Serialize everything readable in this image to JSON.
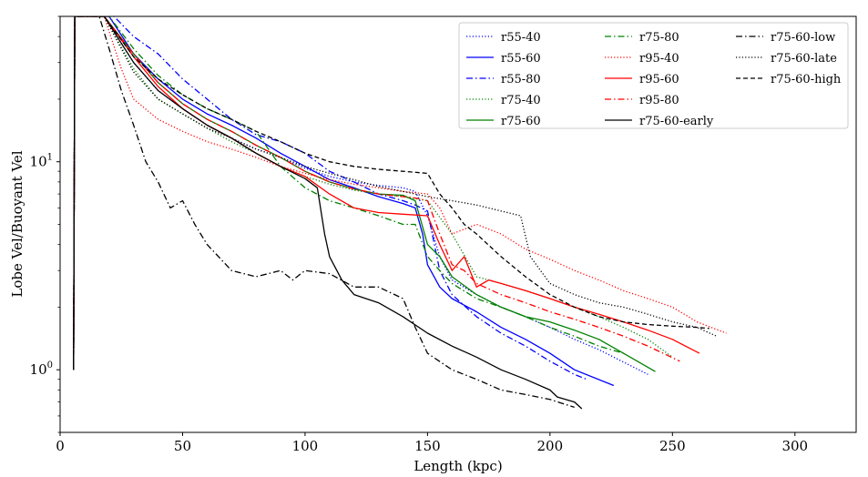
{
  "chart_data": {
    "type": "line",
    "title": "",
    "xlabel": "Length (kpc)",
    "ylabel": "Lobe Vel/Buoyant Vel",
    "xlim": [
      0,
      325
    ],
    "ylim": [
      0.5,
      50
    ],
    "yscale": "log",
    "grid": false,
    "legend_position": "top-right",
    "x_ticks": [
      0,
      50,
      100,
      150,
      200,
      250,
      300
    ],
    "x_tick_labels": [
      "0",
      "50",
      "100",
      "150",
      "200",
      "250",
      "300"
    ],
    "y_ticks": [
      1,
      10
    ],
    "y_tick_base": "10",
    "y_tick_exponents": [
      "0",
      "1"
    ],
    "series": [
      {
        "name": "r55-40",
        "color": "#0000ff",
        "dash": "dotted",
        "x": [
          5.5,
          6,
          18,
          30,
          40,
          50,
          60,
          70,
          80,
          90,
          100,
          110,
          120,
          130,
          140,
          145,
          150,
          155,
          160,
          170,
          180,
          190,
          200,
          210,
          220,
          240
        ],
        "y": [
          1,
          50,
          50,
          30,
          22,
          18,
          15,
          13,
          11.5,
          10.5,
          9.3,
          8.5,
          8,
          7.7,
          7.5,
          7.2,
          5.5,
          3.5,
          2.7,
          2.3,
          2.0,
          1.8,
          1.6,
          1.4,
          1.25,
          0.95
        ]
      },
      {
        "name": "r55-60",
        "color": "#0000ff",
        "dash": "solid",
        "x": [
          5.5,
          6,
          20,
          30,
          40,
          50,
          60,
          70,
          80,
          90,
          100,
          110,
          120,
          130,
          140,
          145,
          148,
          150,
          155,
          160,
          170,
          180,
          190,
          200,
          210,
          226
        ],
        "y": [
          1,
          50,
          50,
          33,
          25,
          20,
          17,
          15,
          13,
          11,
          9.5,
          8.2,
          7.5,
          6.8,
          6.3,
          6.0,
          4.5,
          3.2,
          2.5,
          2.2,
          1.9,
          1.6,
          1.4,
          1.2,
          1.0,
          0.84
        ]
      },
      {
        "name": "r55-80",
        "color": "#0000ff",
        "dash": "dashdot",
        "x": [
          5.5,
          6,
          22,
          30,
          40,
          50,
          60,
          70,
          80,
          90,
          100,
          110,
          120,
          130,
          140,
          145,
          150,
          155,
          160,
          170,
          180,
          190,
          200,
          210,
          215
        ],
        "y": [
          1,
          50,
          50,
          40,
          33,
          25,
          20,
          16,
          13.5,
          12.5,
          11,
          9,
          8,
          7,
          6.5,
          6.2,
          5.8,
          3,
          2.3,
          1.8,
          1.5,
          1.3,
          1.1,
          0.95,
          0.9
        ]
      },
      {
        "name": "r75-40",
        "color": "#008000",
        "dash": "dotted",
        "x": [
          5.5,
          6,
          18,
          30,
          40,
          50,
          60,
          70,
          80,
          90,
          100,
          110,
          120,
          130,
          140,
          150,
          160,
          170,
          180,
          190,
          200,
          210,
          220,
          230,
          240,
          250
        ],
        "y": [
          1,
          50,
          50,
          28,
          20,
          17,
          14.5,
          12.5,
          11,
          9.5,
          8.5,
          7.8,
          7.3,
          7.0,
          6.8,
          6.5,
          4.5,
          2.8,
          2.6,
          2.4,
          2.2,
          2.0,
          1.8,
          1.6,
          1.4,
          1.15
        ]
      },
      {
        "name": "r75-60",
        "color": "#008000",
        "dash": "solid",
        "x": [
          5.5,
          6,
          18,
          30,
          40,
          50,
          60,
          70,
          80,
          90,
          100,
          110,
          120,
          130,
          140,
          145,
          150,
          155,
          160,
          170,
          180,
          190,
          200,
          210,
          220,
          230,
          243
        ],
        "y": [
          1,
          50,
          50,
          33,
          24,
          19,
          16,
          14,
          12,
          10.5,
          9.0,
          8.0,
          7.4,
          7.0,
          6.9,
          6.5,
          4.0,
          3.5,
          2.8,
          2.3,
          2.0,
          1.8,
          1.7,
          1.55,
          1.4,
          1.2,
          0.98
        ]
      },
      {
        "name": "r75-80",
        "color": "#008000",
        "dash": "dashdot",
        "x": [
          5.5,
          6,
          20,
          30,
          40,
          50,
          60,
          70,
          80,
          90,
          100,
          110,
          120,
          130,
          140,
          145,
          150,
          155,
          160,
          170,
          180,
          190,
          200,
          210,
          220,
          230
        ],
        "y": [
          1,
          50,
          50,
          35,
          26,
          21,
          18,
          16,
          14,
          9.5,
          7.5,
          6.5,
          6.0,
          5.5,
          5.0,
          5.0,
          3.5,
          3.0,
          2.6,
          2.2,
          2.0,
          1.8,
          1.6,
          1.45,
          1.3,
          1.2
        ]
      },
      {
        "name": "r95-40",
        "color": "#ff0000",
        "dash": "dotted",
        "x": [
          5.5,
          6,
          18,
          25,
          30,
          40,
          50,
          60,
          70,
          80,
          90,
          100,
          110,
          120,
          130,
          140,
          150,
          155,
          160,
          170,
          180,
          190,
          200,
          210,
          220,
          230,
          240,
          250,
          260,
          272
        ],
        "y": [
          1,
          50,
          50,
          28,
          20,
          16,
          14,
          12.5,
          11.5,
          10.5,
          9.5,
          8.8,
          8.2,
          7.8,
          7.5,
          7.2,
          7.0,
          6.0,
          4.5,
          5.0,
          4.5,
          3.8,
          3.4,
          3.0,
          2.7,
          2.4,
          2.2,
          2.0,
          1.7,
          1.5
        ]
      },
      {
        "name": "r95-60",
        "color": "#ff0000",
        "dash": "solid",
        "x": [
          5.5,
          6,
          18,
          30,
          40,
          50,
          60,
          70,
          80,
          90,
          100,
          110,
          120,
          130,
          140,
          150,
          155,
          160,
          165,
          170,
          175,
          180,
          190,
          200,
          210,
          220,
          230,
          240,
          250,
          261
        ],
        "y": [
          1,
          50,
          50,
          32,
          23,
          18,
          15,
          13,
          11,
          9.5,
          8.5,
          7.0,
          6.0,
          5.7,
          5.6,
          5.5,
          4.0,
          3.0,
          3.5,
          2.5,
          2.7,
          2.6,
          2.4,
          2.2,
          2.0,
          1.85,
          1.7,
          1.55,
          1.4,
          1.2
        ]
      },
      {
        "name": "r95-80",
        "color": "#ff0000",
        "dash": "dashdot",
        "x": [
          5.5,
          6,
          18,
          30,
          40,
          50,
          60,
          70,
          80,
          90,
          100,
          110,
          120,
          130,
          140,
          145,
          150,
          155,
          160,
          165,
          170,
          180,
          190,
          200,
          210,
          220,
          230,
          240,
          253
        ],
        "y": [
          1,
          50,
          50,
          33,
          24,
          19,
          16,
          14,
          12,
          10.5,
          9.0,
          8.0,
          7.4,
          7.0,
          6.8,
          6.7,
          6.5,
          4.5,
          3.2,
          3.0,
          2.6,
          2.3,
          2.1,
          1.9,
          1.75,
          1.6,
          1.45,
          1.3,
          1.1
        ]
      },
      {
        "name": "r75-60-early",
        "color": "#000000",
        "dash": "solid",
        "x": [
          5.5,
          6,
          18,
          30,
          40,
          50,
          60,
          70,
          80,
          90,
          100,
          105,
          108,
          110,
          115,
          120,
          130,
          140,
          150,
          160,
          170,
          180,
          190,
          200,
          203,
          210,
          213
        ],
        "y": [
          1,
          50,
          50,
          30,
          22,
          18,
          15,
          13,
          11,
          9.5,
          8.3,
          7.5,
          4.5,
          3.5,
          2.7,
          2.3,
          2.1,
          1.8,
          1.5,
          1.3,
          1.15,
          1.0,
          0.9,
          0.8,
          0.74,
          0.7,
          0.65
        ]
      },
      {
        "name": "r75-60-low",
        "color": "#000000",
        "dash": "dashdot",
        "x": [
          5.5,
          6,
          16,
          20,
          25,
          30,
          35,
          40,
          45,
          50,
          55,
          60,
          70,
          80,
          90,
          95,
          100,
          110,
          120,
          130,
          140,
          145,
          150,
          160,
          170,
          180,
          190,
          200,
          210
        ],
        "y": [
          1,
          50,
          50,
          35,
          22,
          15,
          10,
          8,
          6.0,
          6.5,
          5.0,
          4.0,
          3.0,
          2.8,
          3.0,
          2.7,
          3.0,
          2.9,
          2.5,
          2.5,
          2.2,
          1.6,
          1.2,
          1.0,
          0.9,
          0.8,
          0.76,
          0.72,
          0.66
        ]
      },
      {
        "name": "r75-60-late",
        "color": "#000000",
        "dash": "dotted",
        "x": [
          5.5,
          6,
          18,
          30,
          40,
          50,
          60,
          70,
          80,
          90,
          100,
          110,
          120,
          130,
          140,
          150,
          160,
          170,
          180,
          188,
          192,
          200,
          210,
          220,
          230,
          240,
          250,
          260,
          268
        ],
        "y": [
          1,
          50,
          50,
          27,
          20,
          17,
          14.5,
          13,
          11.5,
          10.5,
          9.5,
          8.8,
          8.2,
          7.6,
          7.2,
          6.8,
          6.5,
          6.2,
          5.8,
          5.5,
          3.5,
          2.6,
          2.3,
          2.1,
          2.0,
          1.85,
          1.7,
          1.6,
          1.45
        ]
      },
      {
        "name": "r75-60-high",
        "color": "#000000",
        "dash": "dashed",
        "x": [
          5.5,
          6,
          18,
          30,
          40,
          50,
          60,
          70,
          80,
          90,
          100,
          110,
          120,
          130,
          140,
          150,
          155,
          160,
          165,
          170,
          180,
          190,
          200,
          210,
          220,
          230,
          240,
          250,
          260,
          265
        ],
        "y": [
          1,
          50,
          50,
          32,
          25,
          21,
          18,
          16,
          14,
          12.5,
          11,
          10,
          9.5,
          9.2,
          9.0,
          8.8,
          7.0,
          6.0,
          5.0,
          4.5,
          3.5,
          2.8,
          2.3,
          2.0,
          1.8,
          1.7,
          1.65,
          1.62,
          1.6,
          1.58
        ]
      }
    ]
  }
}
